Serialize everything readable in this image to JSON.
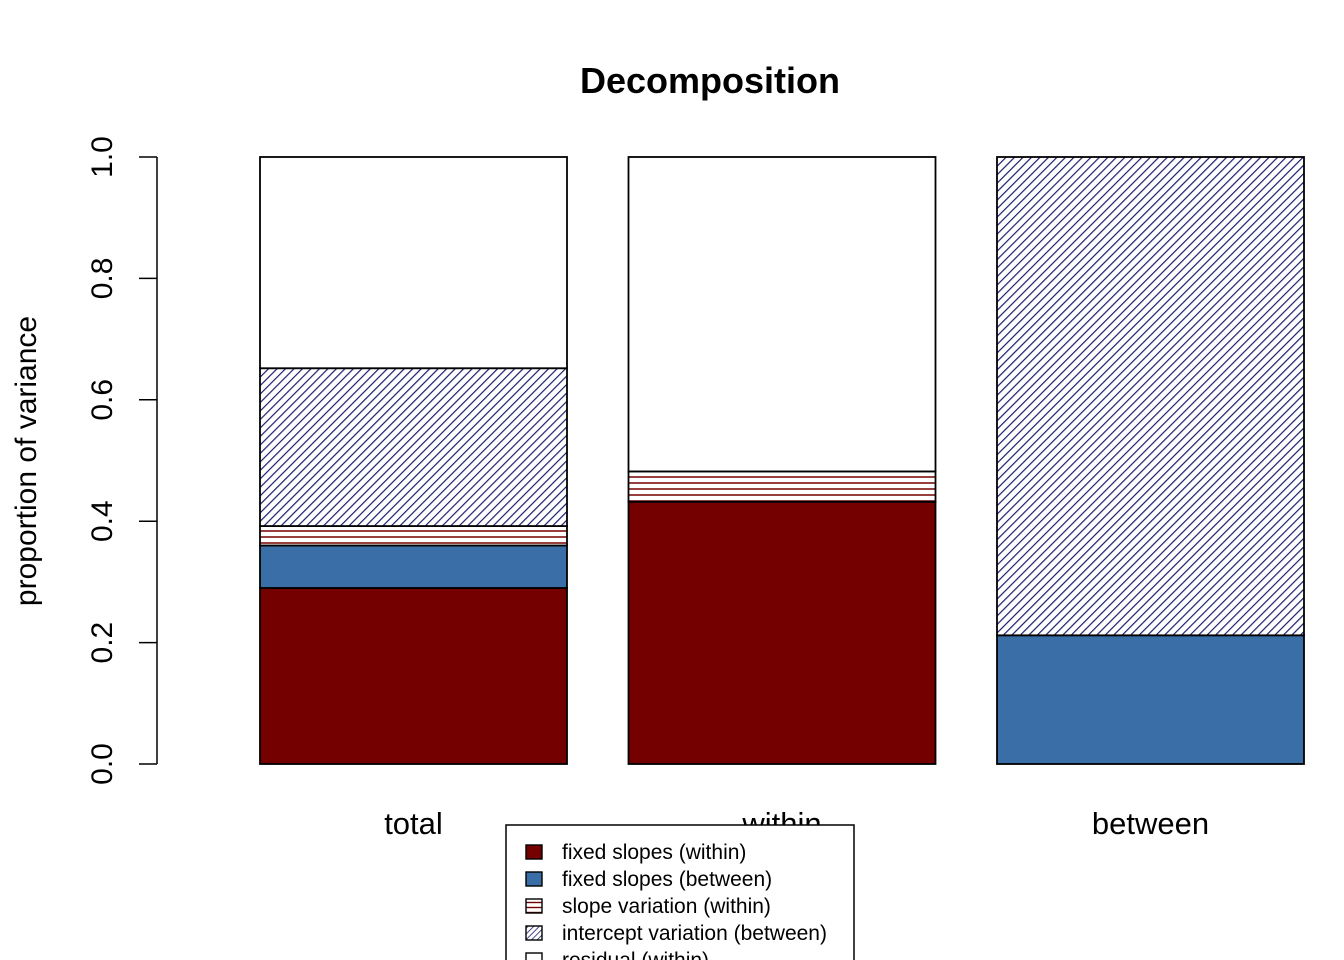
{
  "chart_data": {
    "type": "bar",
    "stacked": true,
    "title": "Decomposition",
    "xlabel": "",
    "ylabel": "proportion of variance",
    "ylim": [
      0,
      1
    ],
    "yticks": [
      "0.0",
      "0.2",
      "0.4",
      "0.6",
      "0.8",
      "1.0"
    ],
    "categories": [
      "total",
      "within",
      "between"
    ],
    "series": [
      {
        "name": "fixed slopes (within)",
        "values": [
          0.29,
          0.432,
          0.0
        ],
        "color": "#750000",
        "pattern": "solid"
      },
      {
        "name": "fixed slopes (between)",
        "values": [
          0.07,
          0.0,
          0.212
        ],
        "color": "#3a6ea6",
        "pattern": "solid"
      },
      {
        "name": "slope variation (within)",
        "values": [
          0.032,
          0.05,
          0.0
        ],
        "color": "#750000",
        "pattern": "horizontal-lines"
      },
      {
        "name": "intercept variation (between)",
        "values": [
          0.26,
          0.0,
          0.788
        ],
        "color": "#1c1c6e",
        "pattern": "diagonal-lines"
      },
      {
        "name": "residual (within)",
        "values": [
          0.348,
          0.518,
          0.0
        ],
        "color": "#ffffff",
        "pattern": "solid"
      }
    ],
    "legend_placement": "bottom-center",
    "grid": false
  }
}
